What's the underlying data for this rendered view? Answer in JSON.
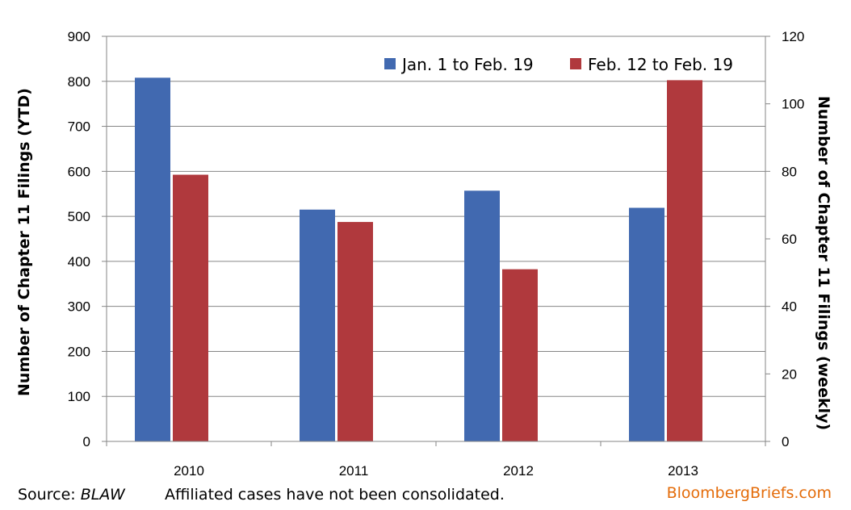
{
  "chart_data": {
    "type": "bar",
    "categories": [
      "2010",
      "2011",
      "2012",
      "2013"
    ],
    "series": [
      {
        "name": "Jan. 1 to Feb. 19",
        "axis": "left",
        "color": "#4169b0",
        "values": [
          808,
          515,
          557,
          519
        ]
      },
      {
        "name": "Feb. 12 to Feb. 19",
        "axis": "right",
        "color": "#b0393d",
        "values": [
          79,
          65,
          51,
          107
        ]
      }
    ],
    "ylabel": "Number of Chapter 11 Filings (YTD)",
    "y2label": "Number of Chapter 11 Filings (weekly)",
    "ylim": [
      0,
      900
    ],
    "y2lim": [
      0,
      120
    ],
    "yticks": [
      "0",
      "100",
      "200",
      "300",
      "400",
      "500",
      "600",
      "700",
      "800",
      "900"
    ],
    "y2ticks": [
      "0",
      "20",
      "40",
      "60",
      "80",
      "100",
      "120"
    ],
    "grid": "horizontal",
    "legend_position": "top-right"
  },
  "footer": {
    "source_prefix": "Source: ",
    "source_name": "BLAW",
    "note": "Affiliated cases have not been consolidated.",
    "brand": "BloombergBriefs.com",
    "brand_color": "#e46c0a"
  }
}
